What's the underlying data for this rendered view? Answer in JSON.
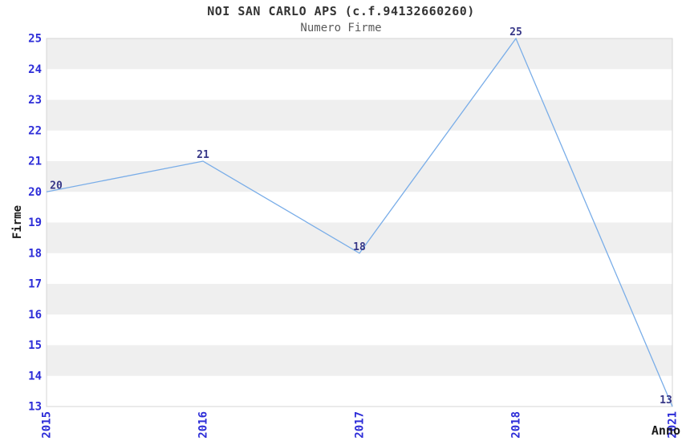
{
  "chart_data": {
    "type": "line",
    "title": "NOI SAN CARLO APS (c.f.94132660260)",
    "subtitle": "Numero Firme",
    "xlabel": "Anno",
    "ylabel": "Firme",
    "categories": [
      "2015",
      "2016",
      "2017",
      "2018",
      "2021"
    ],
    "values": [
      20,
      21,
      18,
      25,
      13
    ],
    "point_labels": [
      "20",
      "21",
      "18",
      "25",
      "13"
    ],
    "ylim": [
      13,
      25
    ],
    "y_ticks": [
      13,
      14,
      15,
      16,
      17,
      18,
      19,
      20,
      21,
      22,
      23,
      24,
      25
    ],
    "x_tick_rotation": -90,
    "legend": "none",
    "grid": "alternating horizontal bands, gray band when lower bound is even",
    "colors": {
      "background": "#ffffff",
      "band": "#efefef",
      "spine": "#d4d4d4",
      "line": "#79ade8",
      "tick_label": "#2d2dd8",
      "point_label": "#373787",
      "title": "#333333",
      "subtitle": "#5a5a5a",
      "axis_label": "#1a1a1a"
    }
  }
}
